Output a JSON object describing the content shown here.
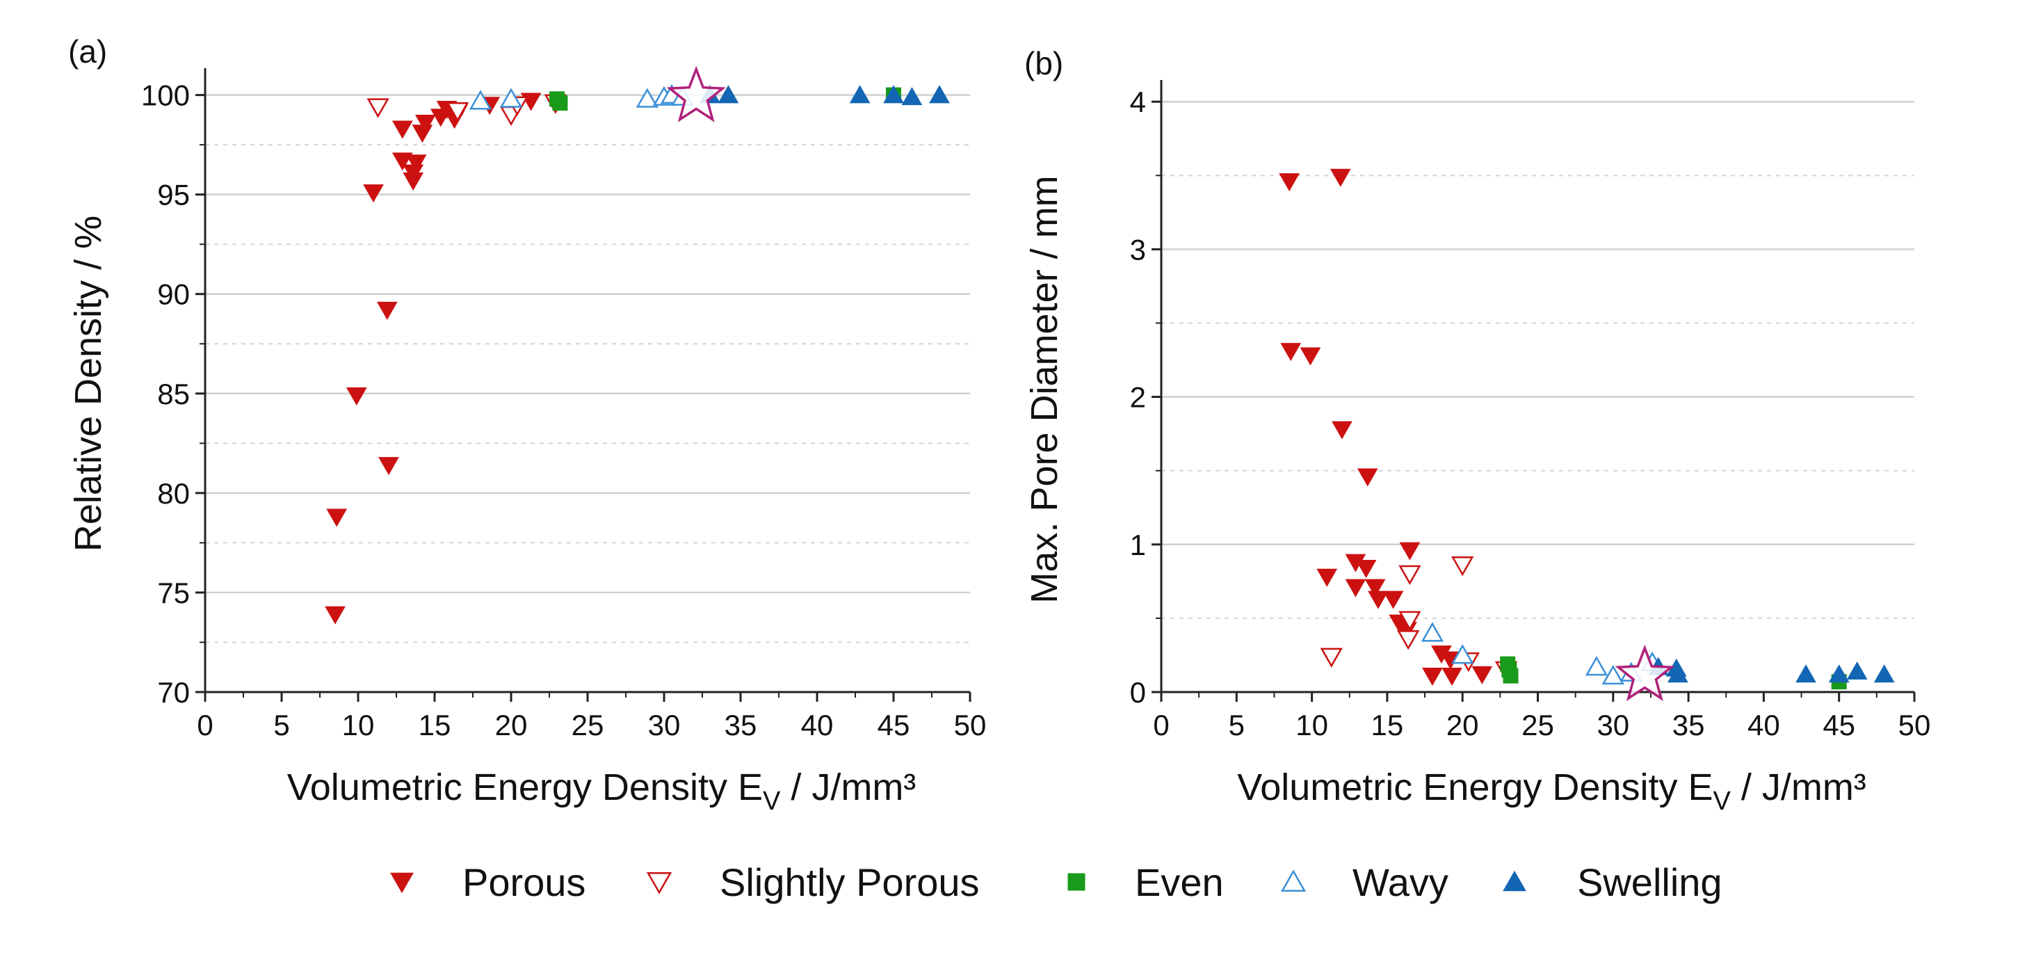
{
  "legend": [
    {
      "key": "porous",
      "label": "Porous",
      "marker": "triangle-down",
      "filled": true,
      "color": "#cc1111"
    },
    {
      "key": "slightly",
      "label": "Slightly Porous",
      "marker": "triangle-down",
      "filled": false,
      "color": "#cc1111"
    },
    {
      "key": "even",
      "label": "Even",
      "marker": "square",
      "filled": true,
      "color": "#1a9a1a"
    },
    {
      "key": "wavy",
      "label": "Wavy",
      "marker": "triangle-up",
      "filled": false,
      "color": "#3b8fd6"
    },
    {
      "key": "swelling",
      "label": "Swelling",
      "marker": "triangle-up",
      "filled": true,
      "color": "#1366b3"
    }
  ],
  "star_color": "#b0207a",
  "chart_data": [
    {
      "type": "scatter",
      "panel": "(a)",
      "xlabel": "Volumetric Energy Density E",
      "xlabel_sub": "V",
      "xlabel_unit": " / J/mm³",
      "ylabel": "Relative Density / %",
      "xlim": [
        0,
        50
      ],
      "ylim": [
        70,
        101
      ],
      "xticks": [
        0,
        5,
        10,
        15,
        20,
        25,
        30,
        35,
        40,
        45,
        50
      ],
      "yticks": [
        70,
        75,
        80,
        85,
        90,
        95,
        100
      ],
      "grid_major": [
        75,
        80,
        85,
        90,
        95,
        100
      ],
      "grid_minor": [
        72.5,
        77.5,
        82.5,
        87.5,
        92.5,
        97.5
      ],
      "series": [
        {
          "name": "Porous",
          "key": "porous",
          "x": [
            8.5,
            8.6,
            9.9,
            11.0,
            11.9,
            12.0,
            12.9,
            12.9,
            13.6,
            13.6,
            13.8,
            14.2,
            14.4,
            15.4,
            15.8,
            16.3,
            16.5,
            18.6,
            21.3
          ],
          "y": [
            73.9,
            78.8,
            84.9,
            95.1,
            89.2,
            81.4,
            98.3,
            96.7,
            96.1,
            95.7,
            96.6,
            98.1,
            98.6,
            98.9,
            99.3,
            98.8,
            99.1,
            99.5,
            99.7
          ]
        },
        {
          "name": "Slightly Porous",
          "key": "slightly",
          "x": [
            11.3,
            16.5,
            20.0,
            20.4,
            22.9
          ],
          "y": [
            99.4,
            99.2,
            99.0,
            99.5,
            99.6
          ]
        },
        {
          "name": "Even",
          "key": "even",
          "x": [
            23.0,
            23.2,
            45.0
          ],
          "y": [
            99.8,
            99.6,
            100.0
          ]
        },
        {
          "name": "Wavy",
          "key": "wavy",
          "x": [
            18.0,
            20.0,
            28.9,
            30.0,
            30.5,
            31.2
          ],
          "y": [
            99.7,
            99.8,
            99.8,
            99.9,
            100.0,
            99.9
          ]
        },
        {
          "name": "Swelling",
          "key": "swelling",
          "x": [
            33.0,
            34.2,
            42.8,
            45.0,
            46.2,
            48.0
          ],
          "y": [
            100.0,
            100.0,
            100.0,
            100.0,
            99.9,
            100.0
          ]
        }
      ],
      "highlight": {
        "x": 32.1,
        "y": 99.9
      }
    },
    {
      "type": "scatter",
      "panel": "(b)",
      "xlabel": "Volumetric Energy Density E",
      "xlabel_sub": "V",
      "xlabel_unit": " / J/mm³",
      "ylabel": "Max. Pore Diameter / mm",
      "xlim": [
        0,
        50
      ],
      "ylim": [
        0,
        4.1
      ],
      "xticks": [
        0,
        5,
        10,
        15,
        20,
        25,
        30,
        35,
        40,
        45,
        50
      ],
      "yticks": [
        0,
        1,
        2,
        3,
        4
      ],
      "grid_major": [
        1,
        2,
        3,
        4
      ],
      "grid_minor": [
        0.5,
        1.5,
        2.5,
        3.5
      ],
      "series": [
        {
          "name": "Porous",
          "key": "porous",
          "x": [
            8.5,
            8.6,
            9.9,
            11.0,
            11.9,
            12.0,
            12.9,
            12.9,
            13.6,
            13.7,
            14.2,
            14.4,
            15.4,
            15.8,
            16.3,
            16.5,
            18.0,
            18.6,
            19.2,
            19.3,
            21.3
          ],
          "y": [
            3.46,
            2.31,
            2.28,
            0.78,
            3.49,
            1.78,
            0.88,
            0.71,
            0.84,
            1.46,
            0.71,
            0.63,
            0.63,
            0.47,
            0.42,
            0.96,
            0.11,
            0.26,
            0.22,
            0.11,
            0.12
          ]
        },
        {
          "name": "Slightly Porous",
          "key": "slightly",
          "x": [
            11.3,
            16.4,
            16.5,
            16.5,
            20.0,
            20.4,
            22.9
          ],
          "y": [
            0.24,
            0.36,
            0.49,
            0.8,
            0.86,
            0.21,
            0.15
          ]
        },
        {
          "name": "Even",
          "key": "even",
          "x": [
            23.0,
            23.1,
            23.2,
            45.0
          ],
          "y": [
            0.19,
            0.15,
            0.11,
            0.07
          ]
        },
        {
          "name": "Wavy",
          "key": "wavy",
          "x": [
            18.0,
            20.0,
            28.9,
            30.0,
            31.2,
            32.6
          ],
          "y": [
            0.4,
            0.25,
            0.17,
            0.11,
            0.13,
            0.2
          ]
        },
        {
          "name": "Swelling",
          "key": "swelling",
          "x": [
            33.0,
            34.2,
            34.3,
            42.8,
            45.0,
            46.2,
            48.0
          ],
          "y": [
            0.17,
            0.16,
            0.12,
            0.12,
            0.12,
            0.14,
            0.12
          ]
        }
      ],
      "highlight": {
        "x": 32.1,
        "y": 0.11
      }
    }
  ]
}
